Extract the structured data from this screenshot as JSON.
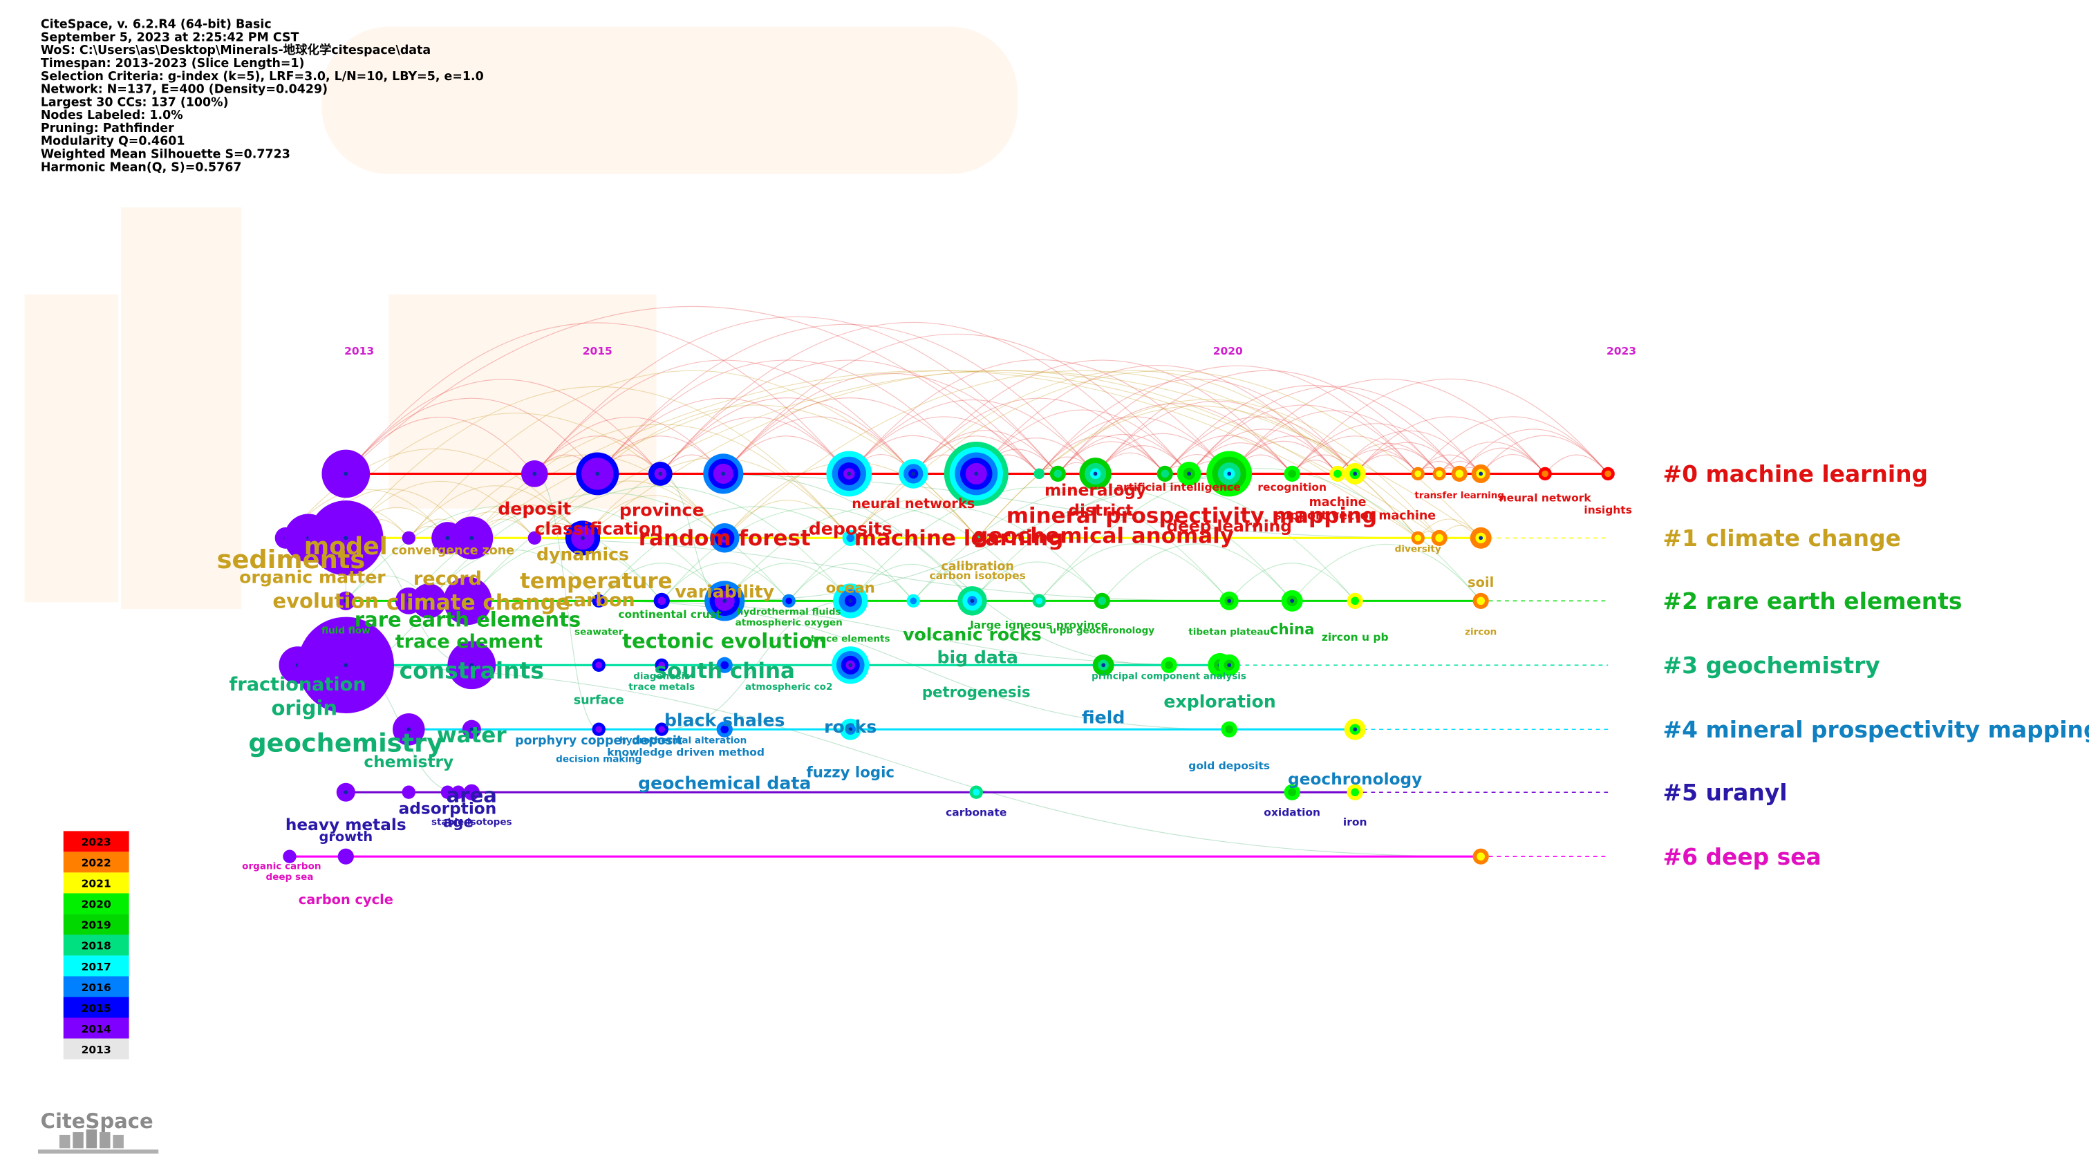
{
  "header": {
    "lines": [
      "CiteSpace, v. 6.2.R4 (64-bit) Basic",
      "September 5, 2023 at 2:25:42 PM CST",
      "WoS: C:\\Users\\as\\Desktop\\Minerals-地球化学citespace\\data",
      "Timespan: 2013-2023 (Slice Length=1)",
      "Selection Criteria: g-index (k=5), LRF=3.0, L/N=10, LBY=5, e=1.0",
      "Network: N=137, E=400 (Density=0.0429)",
      "Largest 30 CCs: 137 (100%)",
      "Nodes Labeled: 1.0%",
      "Pruning: Pathfinder",
      "Modularity Q=0.4601",
      "Weighted Mean Silhouette S=0.7723",
      "Harmonic Mean(Q, S)=0.5767"
    ]
  },
  "timeline": {
    "years": [
      "2013",
      "2015",
      "2020",
      "2023"
    ]
  },
  "clusters": [
    {
      "label": "#0 machine learning",
      "keywords": [
        "deposit",
        "province",
        "classification",
        "random forest",
        "neural networks",
        "deposits",
        "machine learning",
        "geochemical anomaly",
        "mineralogy",
        "district",
        "mineral prospectivity mapping",
        "artificial intelligence",
        "deep learning",
        "recognition",
        "machine",
        "support vector machine",
        "transfer learning",
        "neural network",
        "insights"
      ]
    },
    {
      "label": "#1 climate change",
      "keywords": [
        "sediments",
        "model",
        "organic matter",
        "convergence zone",
        "dynamics",
        "record",
        "temperature",
        "carbon",
        "variability",
        "ocean",
        "evolution",
        "climate change",
        "calibration",
        "carbon isotopes",
        "diversity",
        "soil",
        "zircon"
      ]
    },
    {
      "label": "#2 rare earth elements",
      "keywords": [
        "rare earth elements",
        "trace element",
        "fluid flow",
        "seawater",
        "continental crust",
        "hydrothermal fluids",
        "atmospheric oxygen",
        "tectonic evolution",
        "trace elements",
        "volcanic rocks",
        "large igneous province",
        "u pb geochronology",
        "tibetan plateau",
        "china",
        "zircon u pb"
      ]
    },
    {
      "label": "#3 geochemistry",
      "keywords": [
        "fractionation",
        "origin",
        "constraints",
        "south china",
        "diagenesis",
        "trace metals",
        "atmospheric co2",
        "big data",
        "petrogenesis",
        "principal component analysis",
        "exploration",
        "geochemistry",
        "water",
        "surface",
        "chemistry"
      ]
    },
    {
      "label": "#4 mineral prospectivity mapping",
      "keywords": [
        "porphyry copper deposit",
        "hydrothermal alteration",
        "decision making",
        "knowledge driven method",
        "black shales",
        "rocks",
        "field",
        "fuzzy logic",
        "geochemical data",
        "gold deposits",
        "geochronology"
      ]
    },
    {
      "label": "#5 uranyl",
      "keywords": [
        "heavy metals",
        "growth",
        "adsorption",
        "area",
        "age",
        "stable isotopes",
        "carbonate",
        "oxidation",
        "iron"
      ]
    },
    {
      "label": "#6 deep sea",
      "keywords": [
        "organic carbon",
        "deep sea",
        "carbon cycle"
      ]
    }
  ],
  "legend": {
    "years": [
      "2023",
      "2022",
      "2021",
      "2020",
      "2019",
      "2018",
      "2017",
      "2016",
      "2015",
      "2014",
      "2013"
    ]
  },
  "logo": "CiteSpace"
}
